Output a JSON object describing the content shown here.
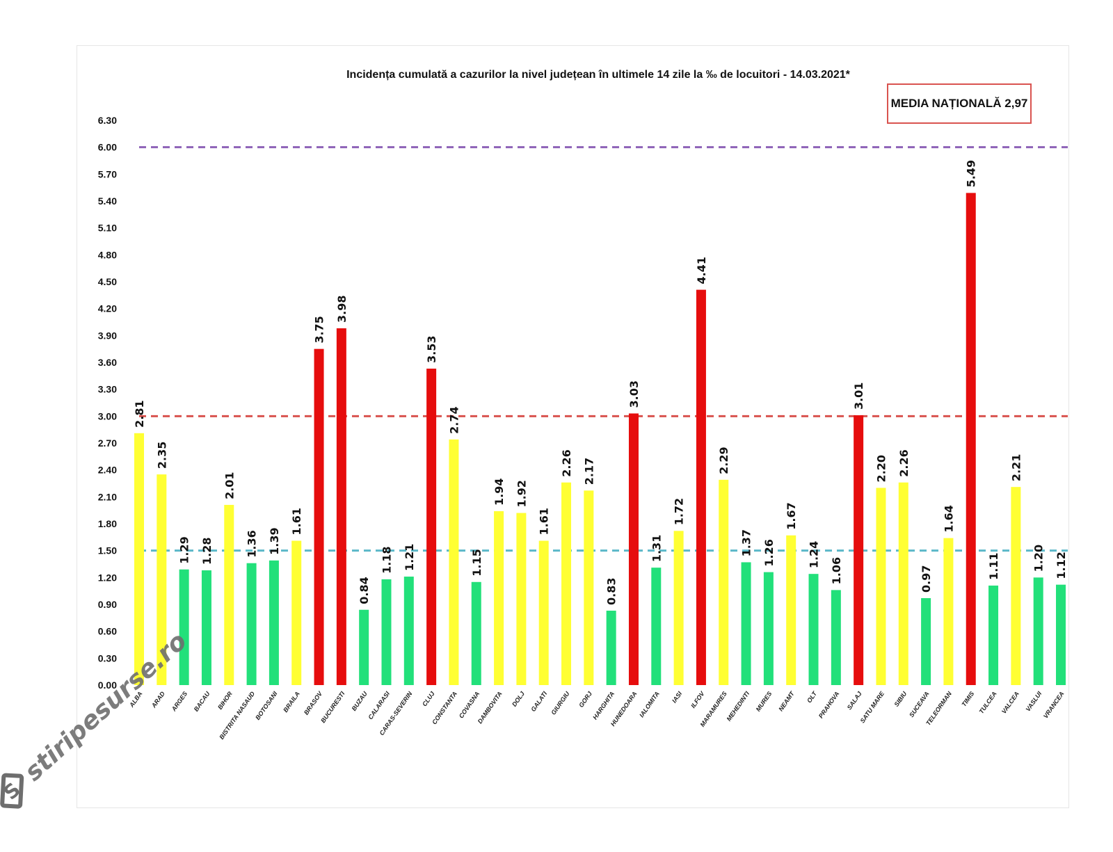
{
  "chart_data": {
    "type": "bar",
    "title": "Incidența cumulată a cazurilor la nivel județean în ultimele 14 zile la ‰ de locuitori - 14.03.2021*",
    "xlabel": "",
    "ylabel": "",
    "ylim": [
      0,
      6.3
    ],
    "yticks": [
      "0.00",
      "0.30",
      "0.60",
      "0.90",
      "1.20",
      "1.50",
      "1.80",
      "2.10",
      "2.40",
      "2.70",
      "3.00",
      "3.30",
      "3.60",
      "3.90",
      "4.20",
      "4.50",
      "4.80",
      "5.10",
      "5.40",
      "5.70",
      "6.00",
      "6.30"
    ],
    "categories": [
      "ALBA",
      "ARAD",
      "ARGES",
      "BACAU",
      "BIHOR",
      "BISTRITA NASAUD",
      "BOTOSANI",
      "BRAILA",
      "BRASOV",
      "BUCURESTI",
      "BUZAU",
      "CALARASI",
      "CARAS-SEVERIN",
      "CLUJ",
      "CONSTANTA",
      "COVASNA",
      "DAMBOVITA",
      "DOLJ",
      "GALATI",
      "GIURGIU",
      "GORJ",
      "HARGHITA",
      "HUNEDOARA",
      "IALOMITA",
      "IASI",
      "ILFOV",
      "MARAMURES",
      "MEHEDINTI",
      "MURES",
      "NEAMT",
      "OLT",
      "PRAHOVA",
      "SALAJ",
      "SATU MARE",
      "SIBIU",
      "SUCEAVA",
      "TELEORMAN",
      "TIMIS",
      "TULCEA",
      "VALCEA",
      "VASLUI",
      "VRANCEA"
    ],
    "values": [
      2.81,
      2.35,
      1.29,
      1.28,
      2.01,
      1.36,
      1.39,
      1.61,
      3.75,
      3.98,
      0.84,
      1.18,
      1.21,
      3.53,
      2.74,
      1.15,
      1.94,
      1.92,
      1.61,
      2.26,
      2.17,
      0.83,
      3.03,
      1.31,
      1.72,
      4.41,
      2.29,
      1.37,
      1.26,
      1.67,
      1.24,
      1.06,
      3.01,
      2.2,
      2.26,
      0.97,
      1.64,
      5.49,
      1.11,
      2.21,
      1.2,
      1.12
    ],
    "value_labels": [
      "2.81",
      "2.35",
      "1.29",
      "1.28",
      "2.01",
      "1.36",
      "1.39",
      "1.61",
      "3.75",
      "3.98",
      "0.84",
      "1.18",
      "1.21",
      "3.53",
      "2.74",
      "1.15",
      "1.94",
      "1.92",
      "1.61",
      "2.26",
      "2.17",
      "0.83",
      "3.03",
      "1.31",
      "1.72",
      "4.41",
      "2.29",
      "1.37",
      "1.26",
      "1.67",
      "1.24",
      "1.06",
      "3.01",
      "2.20",
      "2.26",
      "0.97",
      "1.64",
      "5.49",
      "1.11",
      "2.21",
      "1.20",
      "1.12"
    ],
    "thresholds": [
      {
        "value": 6.0,
        "color": "#8e63b8"
      },
      {
        "value": 3.0,
        "color": "#d9534f"
      },
      {
        "value": 1.5,
        "color": "#5bb8c9"
      }
    ],
    "colors": {
      "low": "#22e07a",
      "mid": "#ffff33",
      "high": "#e60d0d"
    }
  },
  "annotation": {
    "national_average": "MEDIA NAȚIONALĂ  2,97"
  },
  "watermark": {
    "text": "stiripesurse.ro",
    "logo_letter": "S"
  }
}
